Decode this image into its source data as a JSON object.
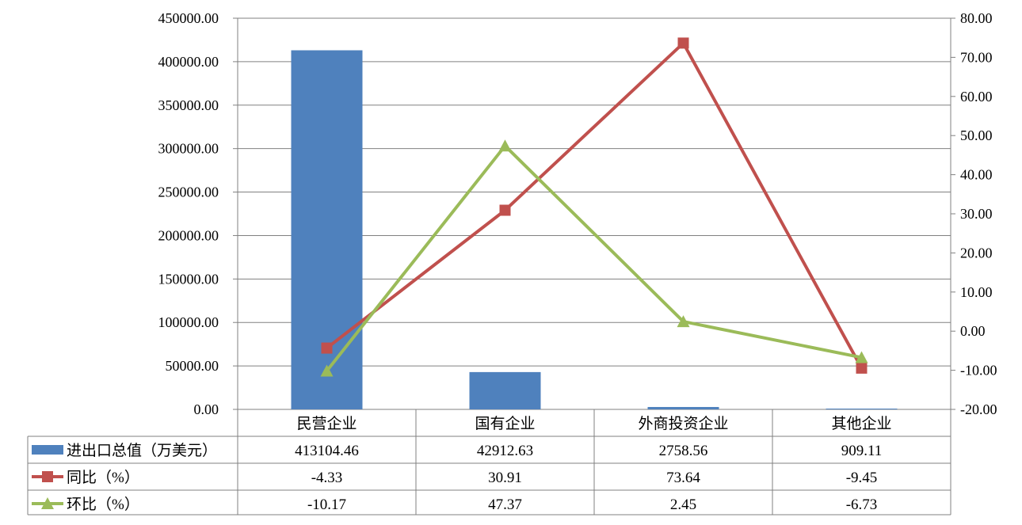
{
  "chart_data": {
    "type": "bar",
    "categories": [
      "民营企业",
      "国有企业",
      "外商投资企业",
      "其他企业"
    ],
    "series": [
      {
        "name": "进出口总值（万美元）",
        "type": "bar",
        "axis": "left",
        "color": "#4F81BD",
        "values": [
          413104.46,
          42912.63,
          2758.56,
          909.11
        ],
        "value_labels": [
          "413104.46",
          "42912.63",
          "2758.56",
          "909.11"
        ]
      },
      {
        "name": "同比（%）",
        "type": "line",
        "axis": "right",
        "color": "#C0504D",
        "marker": "square",
        "values": [
          -4.33,
          30.91,
          73.64,
          -9.45
        ],
        "value_labels": [
          "-4.33",
          "30.91",
          "73.64",
          "-9.45"
        ]
      },
      {
        "name": "环比（%）",
        "type": "line",
        "axis": "right",
        "color": "#9BBB59",
        "marker": "triangle",
        "values": [
          -10.17,
          47.37,
          2.45,
          -6.73
        ],
        "value_labels": [
          "-10.17",
          "47.37",
          "2.45",
          "-6.73"
        ]
      }
    ],
    "y_left": {
      "min": 0,
      "max": 450000,
      "step": 50000,
      "ticks": [
        "0.00",
        "50000.00",
        "100000.00",
        "150000.00",
        "200000.00",
        "250000.00",
        "300000.00",
        "350000.00",
        "400000.00",
        "450000.00"
      ]
    },
    "y_right": {
      "min": -20,
      "max": 80,
      "step": 10,
      "ticks": [
        "-20.00",
        "-10.00",
        "0.00",
        "10.00",
        "20.00",
        "30.00",
        "40.00",
        "50.00",
        "60.00",
        "70.00",
        "80.00"
      ]
    },
    "grid": true,
    "legend": "data-table"
  }
}
